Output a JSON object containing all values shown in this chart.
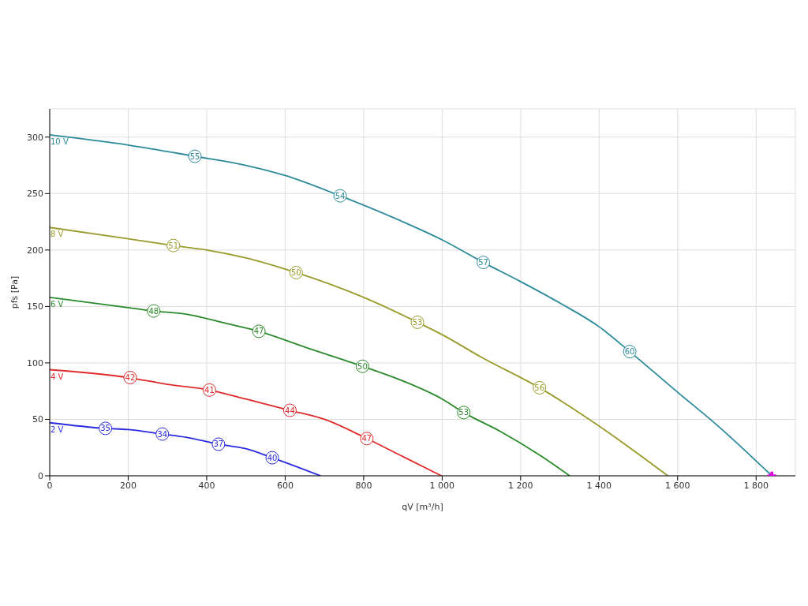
{
  "chart_data": {
    "type": "line",
    "xlabel": "qV [m³/h]",
    "ylabel": "pfs [Pa]",
    "xlim": [
      0,
      1900
    ],
    "ylim": [
      0,
      325
    ],
    "xticks": [
      0,
      200,
      400,
      600,
      800,
      {
        "value": 1000,
        "label": "1 000"
      },
      {
        "value": 1200,
        "label": "1 200"
      },
      {
        "value": 1400,
        "label": "1 400"
      },
      {
        "value": 1600,
        "label": "1 600"
      },
      {
        "value": 1800,
        "label": "1 800"
      }
    ],
    "yticks": [
      0,
      50,
      100,
      150,
      200,
      250,
      300
    ],
    "grid": true,
    "legend": false,
    "marker": "none",
    "line_style": "solid",
    "series": [
      {
        "name": "10 V",
        "color": "#2a8a9a",
        "x": [
          0,
          200,
          370,
          500,
          600,
          740,
          900,
          1000,
          1105,
          1200,
          1300,
          1400,
          1478,
          1600,
          1700,
          1840
        ],
        "values": [
          302,
          293,
          283,
          275,
          266,
          248,
          225,
          209,
          189,
          172,
          153,
          132,
          110,
          74,
          45,
          0
        ]
      },
      {
        "name": "8 V",
        "color": "#9a9a2a",
        "x": [
          0,
          200,
          315,
          400,
          500,
          628,
          800,
          937,
          1000,
          1100,
          1248,
          1400,
          1575
        ],
        "values": [
          220,
          210,
          204,
          200,
          193,
          180,
          158,
          136,
          125,
          105,
          78,
          44,
          0
        ]
      },
      {
        "name": "6 V",
        "color": "#2a8a2a",
        "x": [
          0,
          200,
          265,
          350,
          450,
          533,
          650,
          797,
          900,
          1000,
          1055,
          1150,
          1250,
          1325
        ],
        "values": [
          158,
          149,
          146,
          143,
          135,
          128,
          114,
          97,
          84,
          68,
          56,
          39,
          18,
          0
        ]
      },
      {
        "name": "4 V",
        "color": "#e02a2a",
        "x": [
          0,
          200,
          300,
          407,
          500,
          612,
          700,
          808,
          900,
          998
        ],
        "values": [
          94,
          87,
          81,
          76,
          68,
          58,
          50,
          33,
          17,
          0
        ]
      },
      {
        "name": "2 V",
        "color": "#2a2ae0",
        "x": [
          0,
          142,
          200,
          287,
          350,
          430,
          500,
          567,
          630,
          690
        ],
        "values": [
          47,
          42,
          41,
          37,
          34,
          28,
          24,
          16,
          8,
          0
        ]
      },
      {
        "type": "scatter",
        "color": "#e000e0",
        "marker": "cross",
        "x": [
          1840
        ],
        "values": [
          0
        ]
      }
    ],
    "annotations": [
      {
        "text": "55",
        "x": 370,
        "y": 283
      },
      {
        "text": "54",
        "x": 740,
        "y": 248
      },
      {
        "text": "57",
        "x": 1105,
        "y": 189
      },
      {
        "text": "60",
        "x": 1478,
        "y": 110
      },
      {
        "text": "51",
        "x": 315,
        "y": 204
      },
      {
        "text": "50",
        "x": 628,
        "y": 180
      },
      {
        "text": "53",
        "x": 937,
        "y": 136
      },
      {
        "text": "56",
        "x": 1248,
        "y": 78
      },
      {
        "text": "48",
        "x": 265,
        "y": 146
      },
      {
        "text": "47",
        "x": 533,
        "y": 128
      },
      {
        "text": "50",
        "x": 797,
        "y": 97
      },
      {
        "text": "53",
        "x": 1055,
        "y": 56
      },
      {
        "text": "42",
        "x": 205,
        "y": 87
      },
      {
        "text": "41",
        "x": 407,
        "y": 76
      },
      {
        "text": "44",
        "x": 612,
        "y": 58
      },
      {
        "text": "47",
        "x": 808,
        "y": 33
      },
      {
        "text": "35",
        "x": 142,
        "y": 42
      },
      {
        "text": "34",
        "x": 287,
        "y": 37
      },
      {
        "text": "37",
        "x": 430,
        "y": 28
      },
      {
        "text": "40",
        "x": 567,
        "y": 16
      }
    ]
  }
}
